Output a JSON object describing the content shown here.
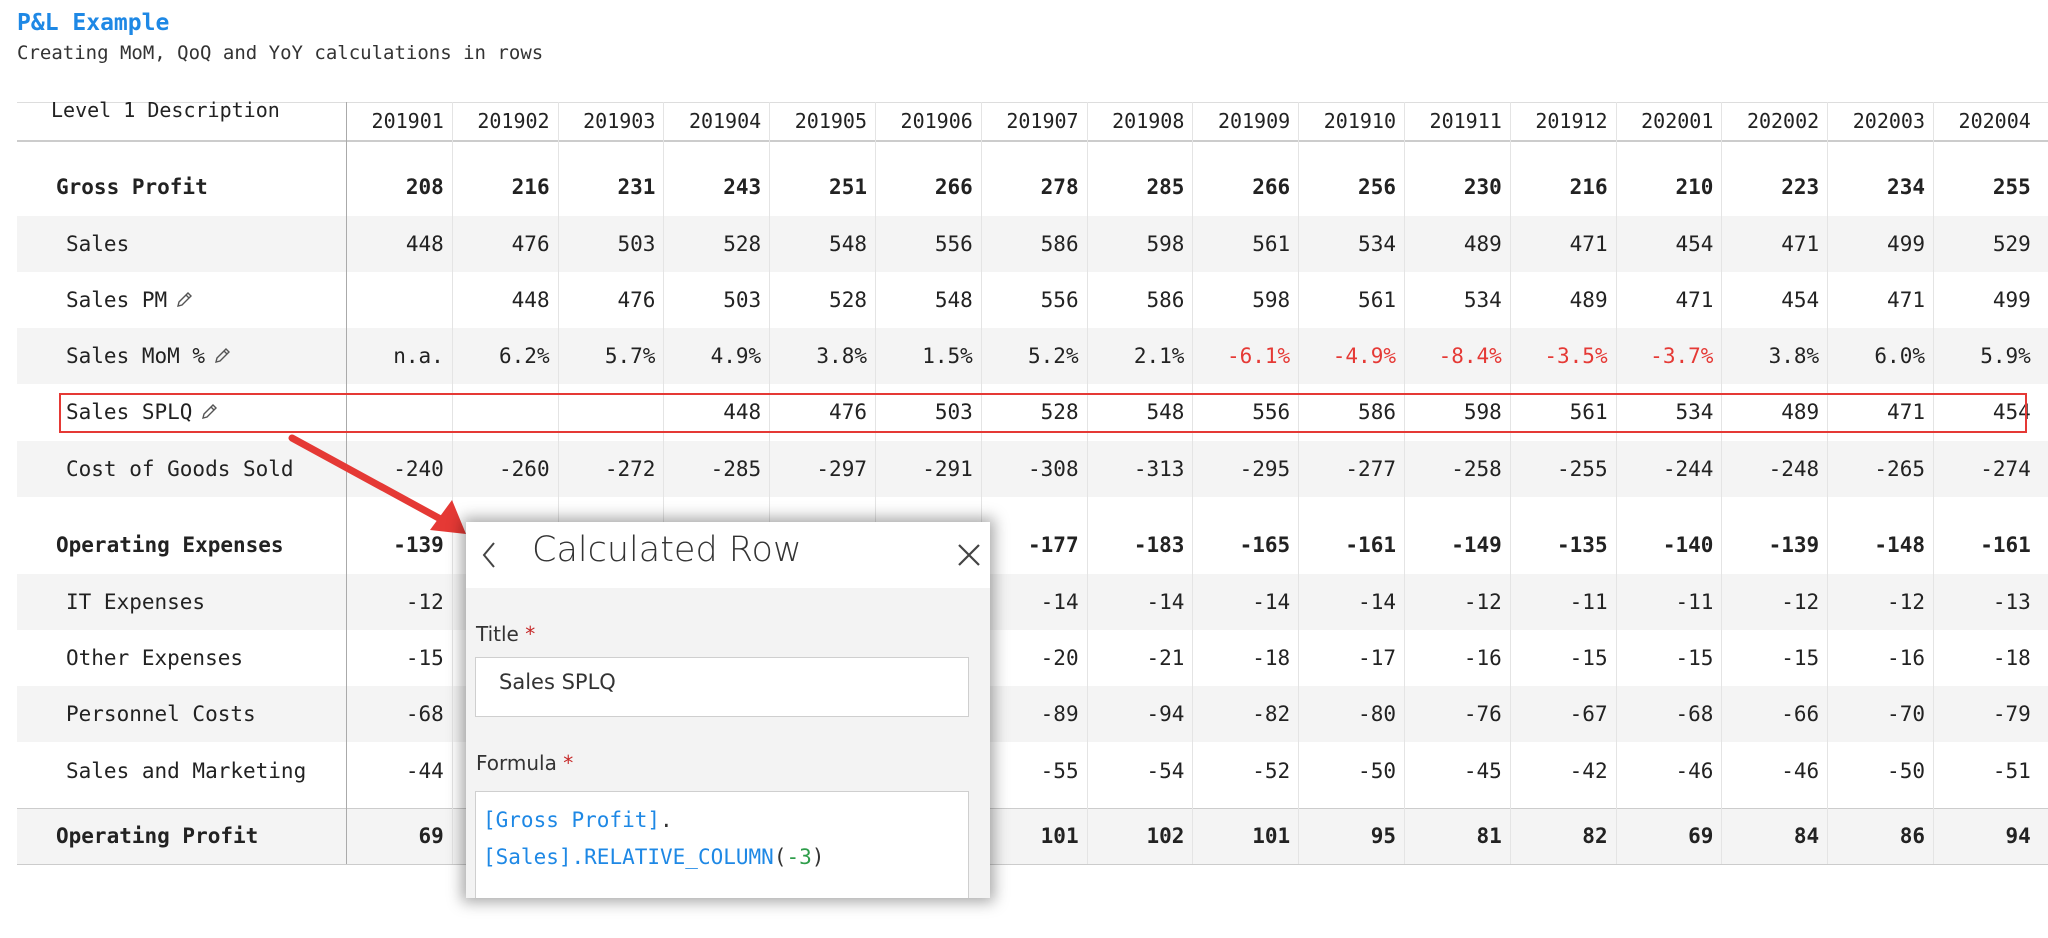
{
  "header": {
    "title": "P&L Example",
    "subtitle": "Creating MoM, QoQ and YoY calculations in rows"
  },
  "table": {
    "columns": [
      "Level 1 Description",
      "201901",
      "201902",
      "201903",
      "201904",
      "201905",
      "201906",
      "201907",
      "201908",
      "201909",
      "201910",
      "201911",
      "201912",
      "202001",
      "202002",
      "202003",
      "202004"
    ],
    "rows": [
      {
        "label": "Gross Profit",
        "bold": true,
        "cells": [
          "208",
          "216",
          "231",
          "243",
          "251",
          "266",
          "278",
          "285",
          "266",
          "256",
          "230",
          "216",
          "210",
          "223",
          "234",
          "255"
        ]
      },
      {
        "label": "Sales",
        "cells": [
          "448",
          "476",
          "503",
          "528",
          "548",
          "556",
          "586",
          "598",
          "561",
          "534",
          "489",
          "471",
          "454",
          "471",
          "499",
          "529"
        ]
      },
      {
        "label": "Sales PM",
        "editable": true,
        "cells": [
          null,
          "448",
          "476",
          "503",
          "528",
          "548",
          "556",
          "586",
          "598",
          "561",
          "534",
          "489",
          "471",
          "454",
          "471",
          "499"
        ]
      },
      {
        "label": "Sales MoM %",
        "editable": true,
        "negative_color": "#e53935",
        "cells": [
          "n.a.",
          "6.2%",
          "5.7%",
          "4.9%",
          "3.8%",
          "1.5%",
          "5.2%",
          "2.1%",
          "-6.1%",
          "-4.9%",
          "-8.4%",
          "-3.5%",
          "-3.7%",
          "3.8%",
          "6.0%",
          "5.9%"
        ]
      },
      {
        "label": "Sales SPLQ",
        "editable": true,
        "highlighted": true,
        "cells": [
          null,
          null,
          null,
          "448",
          "476",
          "503",
          "528",
          "548",
          "556",
          "586",
          "598",
          "561",
          "534",
          "489",
          "471",
          "454"
        ]
      },
      {
        "label": "Cost of Goods Sold",
        "cells": [
          "-240",
          "-260",
          "-272",
          "-285",
          "-297",
          "-291",
          "-308",
          "-313",
          "-295",
          "-277",
          "-258",
          "-255",
          "-244",
          "-248",
          "-265",
          "-274"
        ]
      },
      {
        "label": "Operating Expenses",
        "bold": true,
        "cells": [
          "-139",
          null,
          null,
          null,
          null,
          null,
          "-177",
          "-183",
          "-165",
          "-161",
          "-149",
          "-135",
          "-140",
          "-139",
          "-148",
          "-161"
        ]
      },
      {
        "label": "IT Expenses",
        "cells": [
          "-12",
          null,
          null,
          null,
          null,
          null,
          "-14",
          "-14",
          "-14",
          "-14",
          "-12",
          "-11",
          "-11",
          "-12",
          "-12",
          "-13"
        ]
      },
      {
        "label": "Other Expenses",
        "cells": [
          "-15",
          null,
          null,
          null,
          null,
          null,
          "-20",
          "-21",
          "-18",
          "-17",
          "-16",
          "-15",
          "-15",
          "-15",
          "-16",
          "-18"
        ]
      },
      {
        "label": "Personnel Costs",
        "cells": [
          "-68",
          null,
          null,
          null,
          null,
          null,
          "-89",
          "-94",
          "-82",
          "-80",
          "-76",
          "-67",
          "-68",
          "-66",
          "-70",
          "-79"
        ]
      },
      {
        "label": "Sales and Marketing",
        "cells": [
          "-44",
          null,
          null,
          null,
          null,
          null,
          "-55",
          "-54",
          "-52",
          "-50",
          "-45",
          "-42",
          "-46",
          "-46",
          "-50",
          "-51"
        ]
      },
      {
        "label": "Operating Profit",
        "bold": true,
        "cells": [
          "69",
          null,
          null,
          null,
          null,
          null,
          "101",
          "102",
          "101",
          "95",
          "81",
          "82",
          "69",
          "84",
          "86",
          "94"
        ]
      }
    ]
  },
  "dialog": {
    "title": "Calculated Row",
    "fields": [
      {
        "label": "Title",
        "required": "*",
        "value": "Sales SPLQ"
      },
      {
        "label": "Formula",
        "required": "*"
      }
    ],
    "formula_lines": [
      [
        {
          "text": "[Gross Profit]",
          "color": "#1e88e5"
        },
        {
          "text": ".",
          "color": "#333333"
        }
      ],
      [
        {
          "text": "[Sales]",
          "color": "#1e88e5"
        },
        {
          "text": ".RELATIVE_COLUMN",
          "color": "#1e88e5"
        },
        {
          "text": "(",
          "color": "#333333"
        },
        {
          "text": "-3",
          "color": "#2e9d4a"
        },
        {
          "text": ")",
          "color": "#333333"
        }
      ]
    ]
  }
}
